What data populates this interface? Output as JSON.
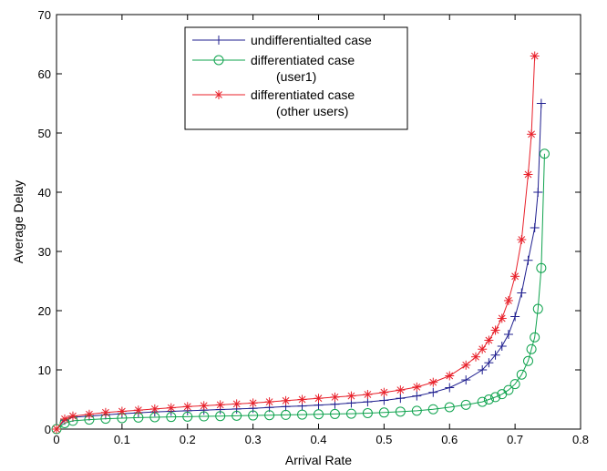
{
  "chart_data": {
    "type": "line",
    "title": "",
    "xlabel": "Arrival Rate",
    "ylabel": "Average Delay",
    "xlim": [
      0,
      0.8
    ],
    "ylim": [
      0,
      70
    ],
    "xticks": [
      "0",
      "0.1",
      "0.2",
      "0.3",
      "0.4",
      "0.5",
      "0.6",
      "0.7",
      "0.8"
    ],
    "yticks": [
      "0",
      "10",
      "20",
      "30",
      "40",
      "50",
      "60",
      "70"
    ],
    "grid": false,
    "legend_position": "top-center",
    "series": [
      {
        "name_lines": [
          "undifferentialted case"
        ],
        "color": "#1f1f8f",
        "marker": "plus",
        "x": [
          0,
          0.0125,
          0.025,
          0.05,
          0.075,
          0.1,
          0.125,
          0.15,
          0.175,
          0.2,
          0.225,
          0.25,
          0.275,
          0.3,
          0.325,
          0.35,
          0.375,
          0.4,
          0.425,
          0.45,
          0.475,
          0.5,
          0.525,
          0.55,
          0.575,
          0.6,
          0.625,
          0.65,
          0.66,
          0.67,
          0.68,
          0.69,
          0.7,
          0.71,
          0.72,
          0.73,
          0.735,
          0.74
        ],
        "y": [
          0,
          1.5,
          2.0,
          2.2,
          2.4,
          2.6,
          2.75,
          2.9,
          3.0,
          3.1,
          3.2,
          3.3,
          3.4,
          3.5,
          3.65,
          3.8,
          3.9,
          4.05,
          4.2,
          4.4,
          4.6,
          4.85,
          5.2,
          5.6,
          6.2,
          7.0,
          8.3,
          10.0,
          11.2,
          12.5,
          14.0,
          16.0,
          19.0,
          23.0,
          28.5,
          34.0,
          40.0,
          55.0
        ]
      },
      {
        "name_lines": [
          "differentiated case",
          "(user1)"
        ],
        "color": "#0fa34e",
        "marker": "circle",
        "x": [
          0,
          0.0125,
          0.025,
          0.05,
          0.075,
          0.1,
          0.125,
          0.15,
          0.175,
          0.2,
          0.225,
          0.25,
          0.275,
          0.3,
          0.325,
          0.35,
          0.375,
          0.4,
          0.425,
          0.45,
          0.475,
          0.5,
          0.525,
          0.55,
          0.575,
          0.6,
          0.625,
          0.65,
          0.66,
          0.67,
          0.68,
          0.69,
          0.7,
          0.71,
          0.72,
          0.725,
          0.73,
          0.735,
          0.74,
          0.745
        ],
        "y": [
          0,
          1.0,
          1.4,
          1.6,
          1.75,
          1.85,
          1.95,
          2.0,
          2.05,
          2.1,
          2.15,
          2.2,
          2.25,
          2.3,
          2.35,
          2.4,
          2.45,
          2.5,
          2.55,
          2.6,
          2.7,
          2.8,
          2.95,
          3.1,
          3.35,
          3.7,
          4.1,
          4.6,
          5.0,
          5.4,
          5.9,
          6.6,
          7.6,
          9.2,
          11.5,
          13.5,
          15.5,
          20.3,
          27.2,
          46.5
        ]
      },
      {
        "name_lines": [
          "differentiated case",
          "(other users)"
        ],
        "color": "#e8202a",
        "marker": "star",
        "x": [
          0,
          0.0125,
          0.025,
          0.05,
          0.075,
          0.1,
          0.125,
          0.15,
          0.175,
          0.2,
          0.225,
          0.25,
          0.275,
          0.3,
          0.325,
          0.35,
          0.375,
          0.4,
          0.425,
          0.45,
          0.475,
          0.5,
          0.525,
          0.55,
          0.575,
          0.6,
          0.625,
          0.64,
          0.65,
          0.66,
          0.67,
          0.68,
          0.69,
          0.7,
          0.71,
          0.72,
          0.725,
          0.73
        ],
        "y": [
          0,
          1.7,
          2.2,
          2.5,
          2.8,
          3.0,
          3.2,
          3.4,
          3.6,
          3.8,
          3.95,
          4.1,
          4.25,
          4.4,
          4.6,
          4.8,
          5.0,
          5.2,
          5.4,
          5.6,
          5.85,
          6.2,
          6.6,
          7.1,
          7.9,
          9.0,
          10.8,
          12.2,
          13.5,
          15.0,
          16.7,
          18.7,
          21.7,
          25.8,
          32.0,
          43.0,
          49.8,
          63.0
        ]
      }
    ]
  }
}
